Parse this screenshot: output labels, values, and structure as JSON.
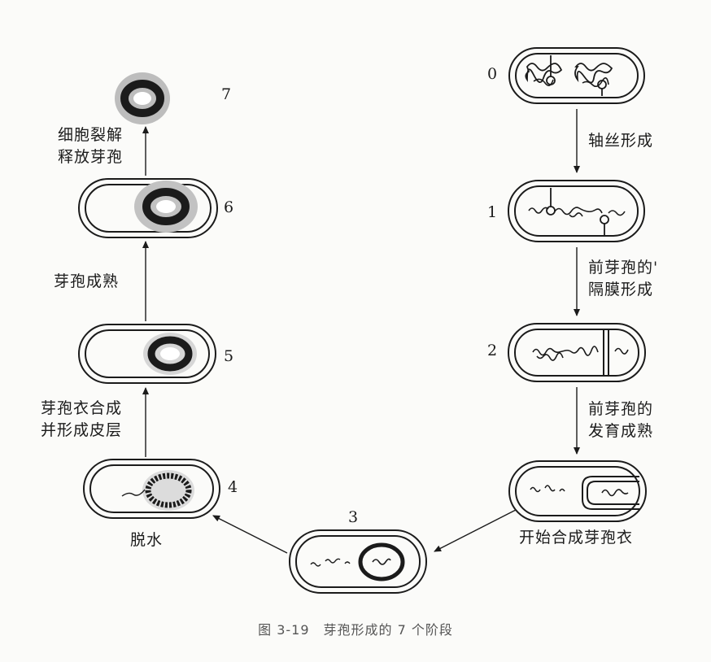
{
  "stages": [
    {
      "number": "0"
    },
    {
      "number": "1"
    },
    {
      "number": "2"
    },
    {
      "number": "3"
    },
    {
      "number": "4"
    },
    {
      "number": "5"
    },
    {
      "number": "6"
    },
    {
      "number": "7"
    }
  ],
  "transitions": {
    "axial_filament": "轴丝形成",
    "forespore_septum": [
      "前芽孢的'",
      "隔膜形成"
    ],
    "forespore_maturation": [
      "前芽孢的",
      "发育成熟"
    ],
    "coat_start": "开始合成芽孢衣",
    "dehydration": "脱水",
    "coat_and_cortex": [
      "芽孢衣合成",
      "并形成皮层"
    ],
    "spore_mature": "芽孢成熟",
    "cell_lysis": [
      "细胞裂解",
      "释放芽孢"
    ]
  },
  "caption": "图 3-19　芽孢形成的 7 个阶段",
  "colors": {
    "ink": "#1b1b1b",
    "spore_halo": "#bdbdbd",
    "background": "#fbfbf9"
  }
}
